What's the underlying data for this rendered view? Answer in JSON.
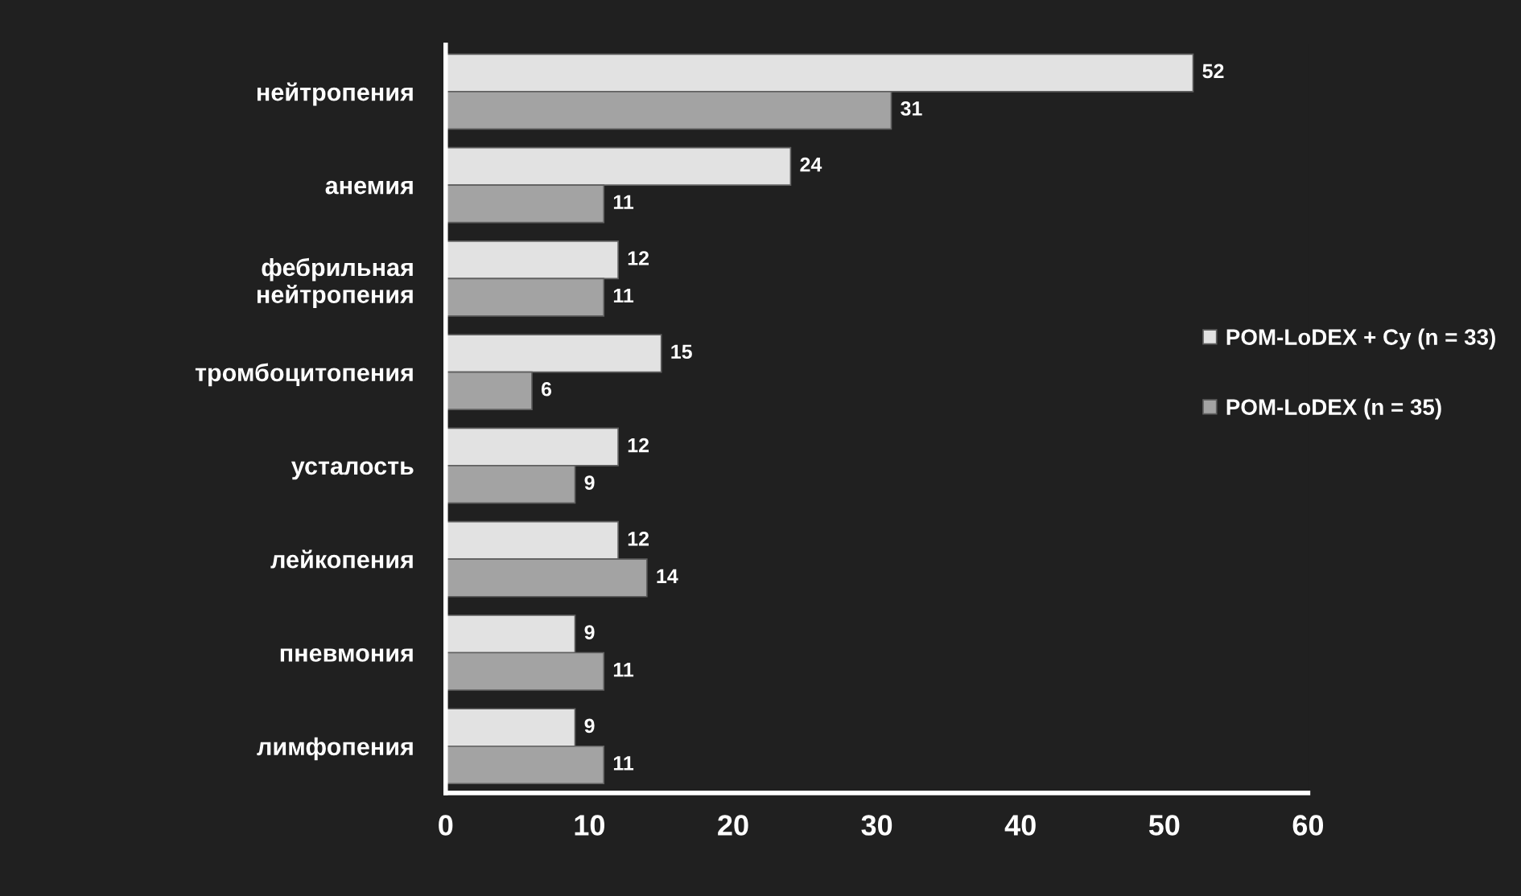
{
  "chart_data": {
    "type": "bar",
    "orientation": "horizontal",
    "categories": [
      "нейтропения",
      "анемия",
      "фебрильная\nнейтропения",
      "тромбоцитопения",
      "усталость",
      "лейкопения",
      "пневмония",
      "лимфопения"
    ],
    "series": [
      {
        "name": "POM-LoDEX + Cy (n = 33)",
        "color": "#e2e2e2",
        "values": [
          52,
          24,
          12,
          15,
          12,
          12,
          9,
          9
        ]
      },
      {
        "name": "POM-LoDEX (n = 35)",
        "color": "#a3a3a3",
        "values": [
          31,
          11,
          11,
          6,
          9,
          14,
          11,
          11
        ]
      }
    ],
    "xlim": [
      0,
      60
    ],
    "xticks": [
      0,
      10,
      20,
      30,
      40,
      50,
      60
    ],
    "data_labels": true,
    "grid": false,
    "legend": "right"
  }
}
